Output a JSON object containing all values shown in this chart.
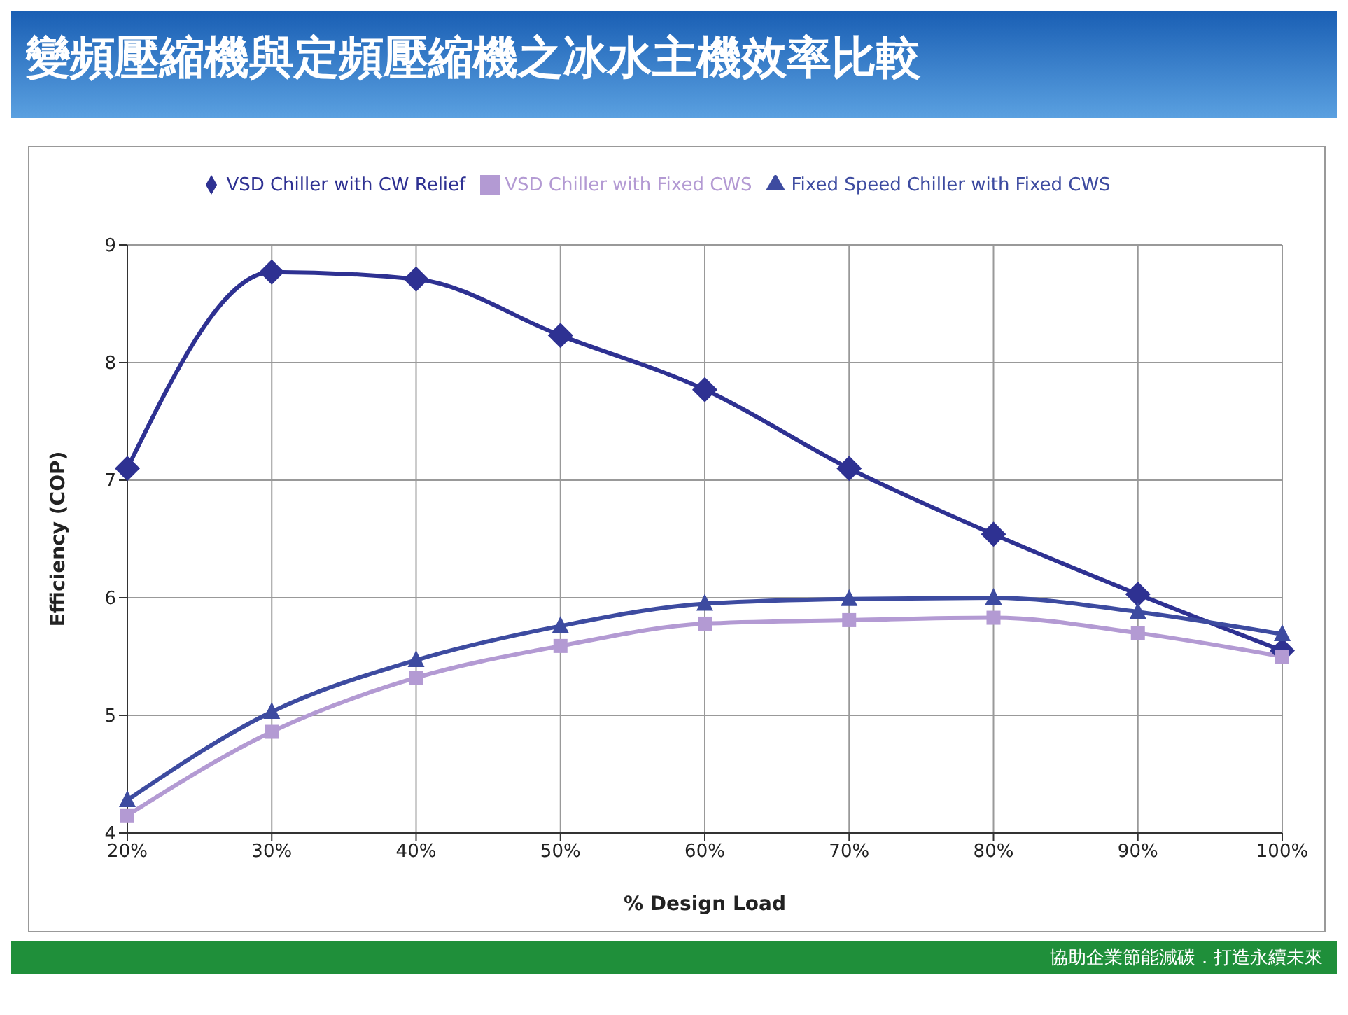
{
  "chart_data": {
    "type": "line",
    "title": "變頻壓縮機與定頻壓縮機之冰水主機效率比較",
    "xlabel": "% Design Load",
    "ylabel": "Efficiency (COP)",
    "categories": [
      "20%",
      "30%",
      "40%",
      "50%",
      "60%",
      "70%",
      "80%",
      "90%",
      "100%"
    ],
    "series": [
      {
        "name": "VSD Chiller with CW Relief",
        "color": "#2e3192",
        "marker": "diamond",
        "values": [
          7.1,
          8.77,
          8.71,
          8.23,
          7.77,
          7.1,
          6.54,
          6.03,
          5.55
        ]
      },
      {
        "name": "VSD Chiller with Fixed CWS",
        "color": "#b39ad3",
        "marker": "square",
        "values": [
          4.15,
          4.86,
          5.32,
          5.59,
          5.78,
          5.81,
          5.83,
          5.7,
          5.5
        ]
      },
      {
        "name": "Fixed Speed Chiller with Fixed CWS",
        "color": "#3d4ba0",
        "marker": "triangle",
        "values": [
          4.28,
          5.03,
          5.47,
          5.76,
          5.95,
          5.99,
          6.0,
          5.88,
          5.69
        ]
      }
    ],
    "ylim": [
      4,
      9
    ],
    "yticks": [
      4,
      5,
      6,
      7,
      8,
      9
    ],
    "grid": true,
    "legend": "top",
    "line_style": "solid",
    "annotations": [
      "協助企業節能減碳．打造永續未來"
    ]
  }
}
